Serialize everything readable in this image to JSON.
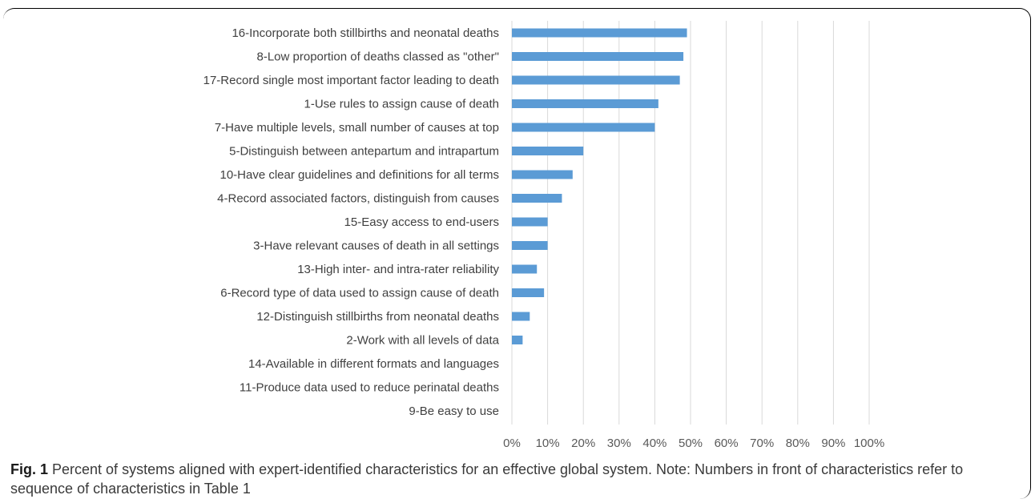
{
  "chart_data": {
    "type": "bar",
    "orientation": "horizontal",
    "categories": [
      "16-Incorporate both stillbirths and neonatal deaths",
      "8-Low proportion of deaths classed as \"other\"",
      "17-Record single most important factor leading to death",
      "1-Use rules to assign cause of death",
      "7-Have multiple levels, small number of causes at top",
      "5-Distinguish between antepartum and intrapartum",
      "10-Have clear guidelines and definitions for all terms",
      "4-Record associated factors, distinguish from causes",
      "15-Easy access to end-users",
      "3-Have relevant causes of death in all settings",
      "13-High inter- and intra-rater reliability",
      "6-Record type of data used to assign cause of death",
      "12-Distinguish stillbirths from neonatal deaths",
      "2-Work with all levels of data",
      "14-Available in different formats and  languages",
      "11-Produce data used to reduce perinatal deaths",
      "9-Be easy to use"
    ],
    "values": [
      49,
      48,
      47,
      41,
      40,
      20,
      17,
      14,
      10,
      10,
      7,
      9,
      5,
      3,
      0,
      0,
      0
    ],
    "xlim": [
      0,
      100
    ],
    "ticks": [
      0,
      10,
      20,
      30,
      40,
      50,
      60,
      70,
      80,
      90,
      100
    ],
    "tick_labels": [
      "0%",
      "10%",
      "20%",
      "30%",
      "40%",
      "50%",
      "60%",
      "70%",
      "80%",
      "90%",
      "100%"
    ],
    "bar_color": "#5b9bd5",
    "grid_color": "#d9d9d9",
    "grid": true,
    "legend": false
  },
  "caption": {
    "label": "Fig. 1",
    "text": " Percent of systems aligned with expert-identified characteristics for an effective global system. Note: Numbers in front of characteristics refer to sequence of characteristics in Table 1"
  }
}
